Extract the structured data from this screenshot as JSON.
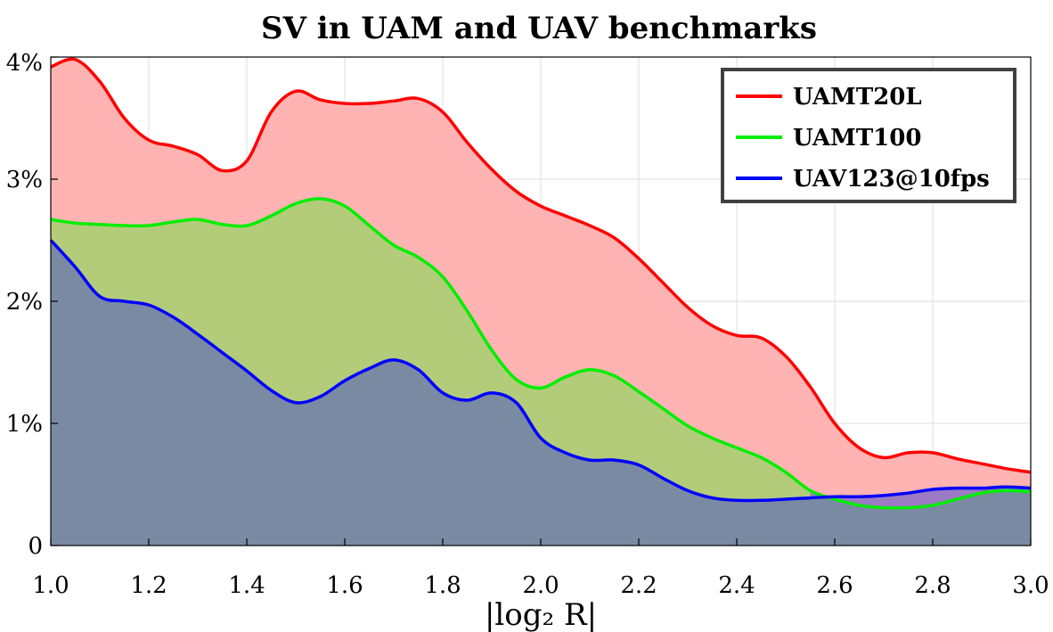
{
  "chart_data": {
    "type": "area",
    "title": "SV in UAM and UAV benchmarks",
    "xlabel": "|log₂ R|",
    "ylabel": "",
    "xlim": [
      1.0,
      3.0
    ],
    "ylim": [
      0,
      4
    ],
    "grid": true,
    "legend_position": "top-right",
    "x_ticks": [
      "1.0",
      "1.2",
      "1.4",
      "1.6",
      "1.8",
      "2.0",
      "2.2",
      "2.4",
      "2.6",
      "2.8",
      "3.0"
    ],
    "y_ticks": [
      "0",
      "1%",
      "2%",
      "3%",
      "4%"
    ],
    "x": [
      1.0,
      1.05,
      1.1,
      1.15,
      1.2,
      1.25,
      1.3,
      1.35,
      1.4,
      1.45,
      1.5,
      1.55,
      1.6,
      1.65,
      1.7,
      1.75,
      1.8,
      1.85,
      1.9,
      1.95,
      2.0,
      2.05,
      2.1,
      2.15,
      2.2,
      2.25,
      2.3,
      2.35,
      2.4,
      2.45,
      2.5,
      2.55,
      2.6,
      2.65,
      2.7,
      2.75,
      2.8,
      2.85,
      2.9,
      2.95,
      3.0
    ],
    "series": [
      {
        "name": "UAMT20L",
        "color": "#ff0000",
        "fill": "#ffb3b3",
        "values": [
          3.92,
          3.98,
          3.8,
          3.5,
          3.32,
          3.27,
          3.2,
          3.07,
          3.15,
          3.55,
          3.72,
          3.65,
          3.62,
          3.62,
          3.64,
          3.66,
          3.55,
          3.3,
          3.08,
          2.9,
          2.78,
          2.7,
          2.62,
          2.52,
          2.35,
          2.15,
          1.95,
          1.8,
          1.72,
          1.7,
          1.55,
          1.3,
          1.0,
          0.8,
          0.72,
          0.76,
          0.76,
          0.71,
          0.67,
          0.63,
          0.6
        ]
      },
      {
        "name": "UAMT100",
        "color": "#00ee00",
        "fill": "#b3cc7a",
        "values": [
          2.67,
          2.64,
          2.63,
          2.62,
          2.62,
          2.65,
          2.67,
          2.63,
          2.62,
          2.7,
          2.8,
          2.84,
          2.78,
          2.62,
          2.46,
          2.36,
          2.2,
          1.92,
          1.6,
          1.36,
          1.29,
          1.38,
          1.44,
          1.39,
          1.26,
          1.12,
          0.98,
          0.88,
          0.8,
          0.72,
          0.6,
          0.45,
          0.38,
          0.33,
          0.31,
          0.31,
          0.33,
          0.38,
          0.43,
          0.45,
          0.44
        ]
      },
      {
        "name": "UAV123@10fps",
        "color": "#0000ff",
        "fill": "#7b8aa3",
        "values": [
          2.5,
          2.28,
          2.04,
          2.0,
          1.97,
          1.87,
          1.73,
          1.58,
          1.43,
          1.27,
          1.17,
          1.22,
          1.35,
          1.45,
          1.52,
          1.44,
          1.25,
          1.19,
          1.25,
          1.17,
          0.88,
          0.76,
          0.7,
          0.7,
          0.66,
          0.55,
          0.45,
          0.39,
          0.37,
          0.37,
          0.38,
          0.39,
          0.4,
          0.4,
          0.41,
          0.43,
          0.46,
          0.47,
          0.47,
          0.48,
          0.47
        ]
      }
    ],
    "overlap_fill": "#a078c8"
  }
}
